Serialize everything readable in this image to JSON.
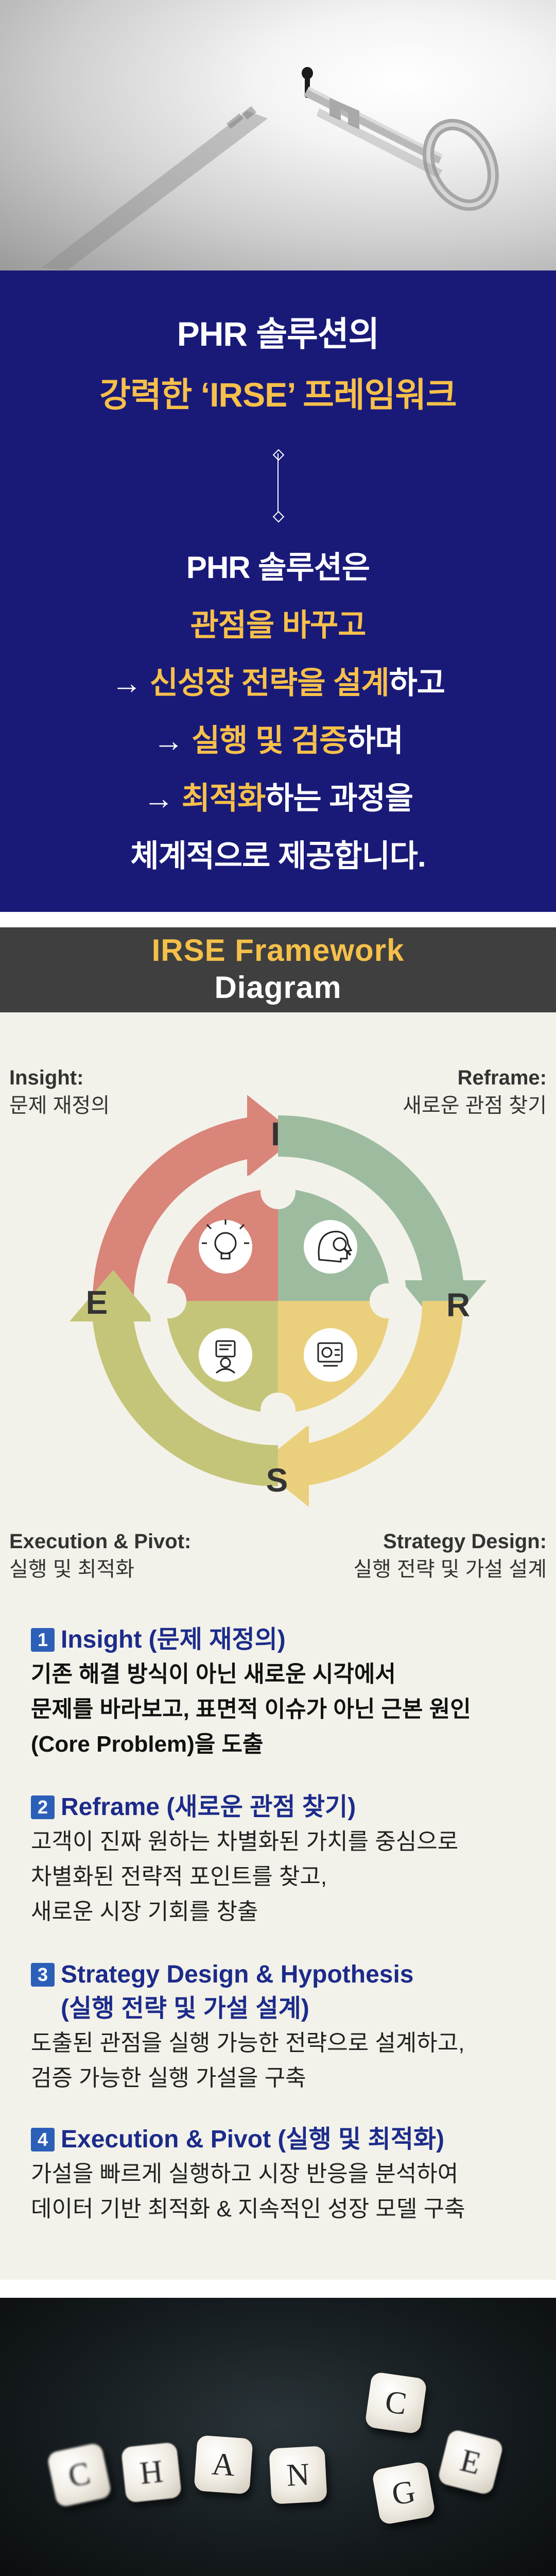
{
  "intro": {
    "title_line1": "PHR 솔루션의",
    "title_line2": "강력한 ‘IRSE’ 프레임워크",
    "body_line1": "PHR 솔루션은",
    "body_line2_yellow": "관점을 바꾸고",
    "body_line3_arrow": "→ ",
    "body_line3_yellow": "신성장 전략을 설계",
    "body_line3_white": "하고",
    "body_line4_arrow": "→ ",
    "body_line4_yellow": "실행 및 검증",
    "body_line4_white": "하며",
    "body_line5_arrow": "→ ",
    "body_line5_yellow": "최적화",
    "body_line5_white": "하는 과정을",
    "body_line6": "체계적으로 제공합니다."
  },
  "framework": {
    "header_line1": "IRSE Framework",
    "header_line2": "Diagram",
    "letters": {
      "i": "I",
      "r": "R",
      "s": "S",
      "e": "E"
    },
    "corner": {
      "insight_bold": "Insight:",
      "insight_sub": "문제 재정의",
      "reframe_bold": "Reframe:",
      "reframe_sub": "새로운 관점 찾기",
      "execution_bold": "Execution & Pivot:",
      "execution_sub": "실행 및 최적화",
      "strategy_bold": "Strategy Design:",
      "strategy_sub": "실행 전략 및 가설 설계"
    },
    "items": [
      {
        "num": "1",
        "title": "Insight (문제 재정의)",
        "lines": [
          "기존 해결 방식이 아닌 새로운 시각에서",
          "문제를 바라보고, 표면적 이슈가 아닌 근본 원인",
          "(Core Problem)을 도출"
        ]
      },
      {
        "num": "2",
        "title": "Reframe (새로운 관점 찾기)",
        "lines": [
          "고객이 진짜 원하는 차별화된 가치를 중심으로",
          "차별화된 전략적 포인트를 찾고,",
          "새로운 시장 기회를 창출"
        ]
      },
      {
        "num": "3",
        "title": "Strategy Design & Hypothesis",
        "title2": "(실행 전략 및 가설 설계)",
        "lines": [
          "도출된 관점을 실행 가능한 전략으로 설계하고,",
          "검증 가능한 실행 가설을 구축"
        ]
      },
      {
        "num": "4",
        "title": "Execution & Pivot (실행 및 최적화)",
        "lines": [
          "가설을 빠르게 실행하고 시장 반응을 분석하여",
          "데이터 기반 최적화 & 지속적인 성장 모델 구축"
        ]
      }
    ],
    "colors": {
      "insight": "#d9857a",
      "reframe": "#9dbc9f",
      "strategy": "#ead07c",
      "execution": "#c5c57a"
    }
  },
  "change": {
    "dice": [
      "C",
      "H",
      "A",
      "N",
      "C",
      "G",
      "E"
    ]
  }
}
